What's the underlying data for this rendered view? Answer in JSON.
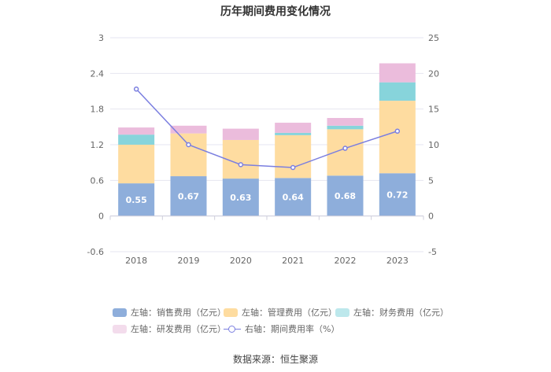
{
  "chart_data": {
    "type": "bar",
    "stacked": true,
    "title": "历年期间费用变化情况",
    "categories": [
      "2018",
      "2019",
      "2020",
      "2021",
      "2022",
      "2023"
    ],
    "left_axis": {
      "range": [
        -0.6,
        3
      ],
      "ticks": [
        "-0.6",
        "0",
        "0.6",
        "1.2",
        "1.8",
        "2.4",
        "3"
      ]
    },
    "right_axis": {
      "range": [
        -5,
        25
      ],
      "ticks": [
        "-5",
        "0",
        "5",
        "10",
        "15",
        "20",
        "25"
      ]
    },
    "series": [
      {
        "name": "左轴：销售费用（亿元）",
        "axis": "left",
        "color": "#8eaedb",
        "values": [
          0.55,
          0.67,
          0.63,
          0.64,
          0.68,
          0.72
        ],
        "labels": [
          "0.55",
          "0.67",
          "0.63",
          "0.64",
          "0.68",
          "0.72"
        ]
      },
      {
        "name": "左轴：管理费用（亿元）",
        "axis": "left",
        "color": "#fedca0",
        "values": [
          0.65,
          0.72,
          0.65,
          0.72,
          0.78,
          1.22
        ]
      },
      {
        "name": "左轴：财务费用（亿元）",
        "axis": "left",
        "color": "#87d4db",
        "values": [
          0.17,
          0.0,
          0.0,
          0.04,
          0.06,
          0.31
        ]
      },
      {
        "name": "左轴：研发费用（亿元）",
        "axis": "left",
        "color": "#ebbcdc",
        "values": [
          0.12,
          0.13,
          0.19,
          0.17,
          0.13,
          0.32
        ]
      },
      {
        "name": "右轴：期间费用率（%）",
        "axis": "right",
        "type": "line",
        "color": "#7b7fe0",
        "values": [
          17.8,
          10.0,
          7.2,
          6.8,
          9.5,
          11.9
        ]
      }
    ],
    "legend_position": "bottom"
  },
  "source": "数据来源：恒生聚源"
}
